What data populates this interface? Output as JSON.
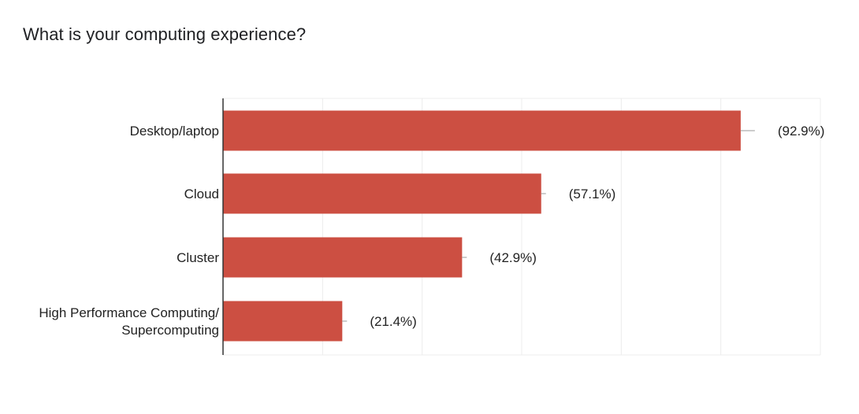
{
  "chart_data": {
    "type": "bar",
    "orientation": "horizontal",
    "title": "What is your computing experience?",
    "categories": [
      [
        "Desktop/laptop"
      ],
      [
        "Cloud"
      ],
      [
        "Cluster"
      ],
      [
        "High Performance Computing/",
        "Supercomputing"
      ]
    ],
    "values": [
      92.9,
      57.1,
      42.9,
      21.4
    ],
    "value_labels": [
      "(92.9%)",
      "(57.1%)",
      "(42.9%)",
      "(21.4%)"
    ],
    "xlim": [
      0,
      107.2
    ],
    "grid": true,
    "legend": "none",
    "bar_color": "#cc4f42",
    "gridline_color": "#ececec",
    "axis_color": "#333333"
  }
}
